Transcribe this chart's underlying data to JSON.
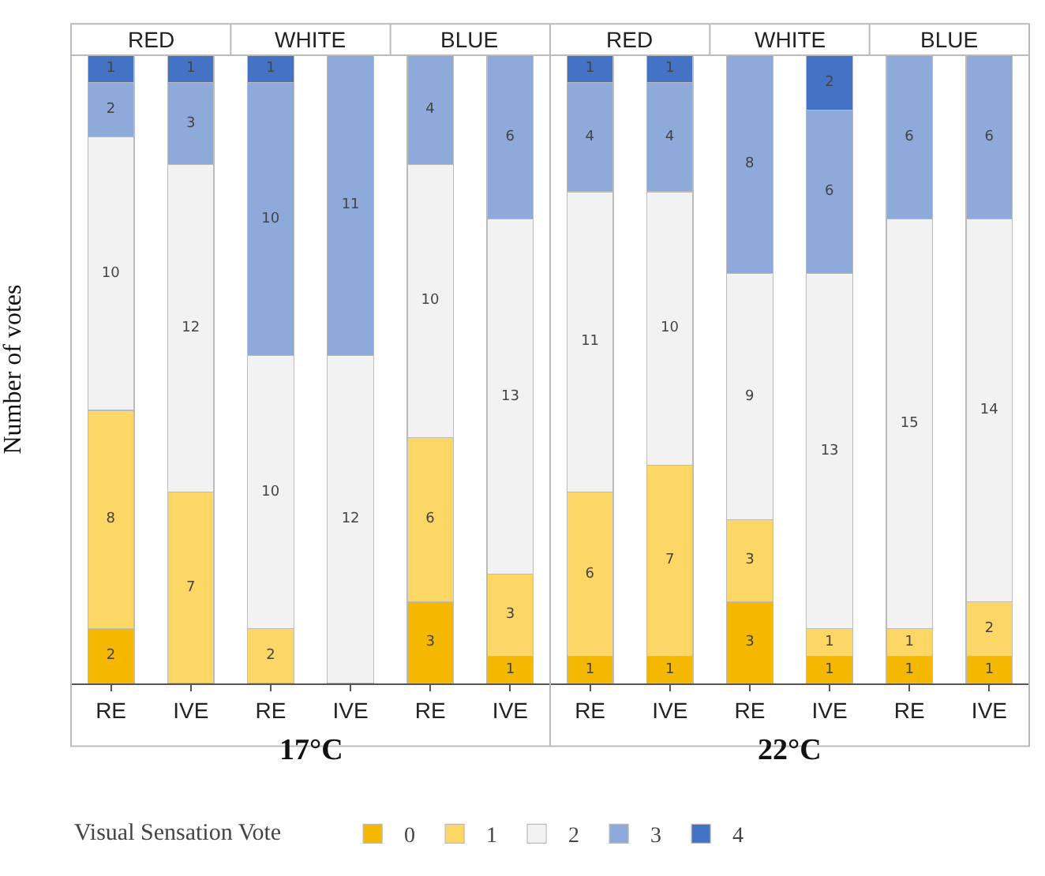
{
  "chart_data": {
    "type": "bar",
    "stacked": true,
    "ylabel": "Number of votes",
    "legend_title": "Visual Sensation Vote",
    "legend": "bottom",
    "tick_labels": "x",
    "grid": false,
    "ylim": [
      0,
      23
    ],
    "categories": [
      "RE",
      "IVE",
      "RE",
      "IVE",
      "RE",
      "IVE",
      "RE",
      "IVE",
      "RE",
      "IVE",
      "RE",
      "IVE"
    ],
    "annotations": [
      "RED",
      "WHITE",
      "BLUE",
      "RED",
      "WHITE",
      "BLUE",
      "17°C",
      "22°C"
    ],
    "series": [
      {
        "name": "0",
        "color": "#f5b800",
        "values": [
          2,
          0,
          0,
          0,
          3,
          1,
          1,
          1,
          3,
          1,
          1,
          1
        ],
        "value_labels": [
          "2",
          null,
          null,
          null,
          "3",
          "1",
          "1",
          "1",
          "3",
          "1",
          "1",
          "1"
        ]
      },
      {
        "name": "1",
        "color": "#fdd766",
        "values": [
          8,
          7,
          2,
          0,
          6,
          3,
          6,
          7,
          3,
          1,
          1,
          2
        ],
        "value_labels": [
          "8",
          "7",
          "2",
          null,
          "6",
          "3",
          "6",
          "7",
          "3",
          "1",
          "1",
          "2"
        ]
      },
      {
        "name": "2",
        "color": "#f2f2f2",
        "values": [
          10,
          12,
          10,
          12,
          10,
          13,
          11,
          10,
          9,
          13,
          15,
          14
        ],
        "value_labels": [
          "10",
          "12",
          "10",
          "12",
          "10",
          "13",
          "11",
          "10",
          "9",
          "13",
          "15",
          "14"
        ]
      },
      {
        "name": "3",
        "color": "#8eaadb",
        "values": [
          2,
          3,
          10,
          11,
          4,
          6,
          4,
          4,
          8,
          6,
          6,
          6
        ],
        "value_labels": [
          "2",
          "3",
          "10",
          "11",
          "4",
          "6",
          "4",
          "4",
          "8",
          "6",
          "6",
          "6"
        ]
      },
      {
        "name": "4",
        "color": "#4472c4",
        "values": [
          1,
          1,
          1,
          0,
          0,
          0,
          1,
          1,
          0,
          2,
          0,
          0
        ],
        "value_labels": [
          "1",
          "1",
          "1",
          null,
          null,
          null,
          "1",
          "1",
          null,
          "2",
          null,
          null
        ]
      }
    ]
  }
}
